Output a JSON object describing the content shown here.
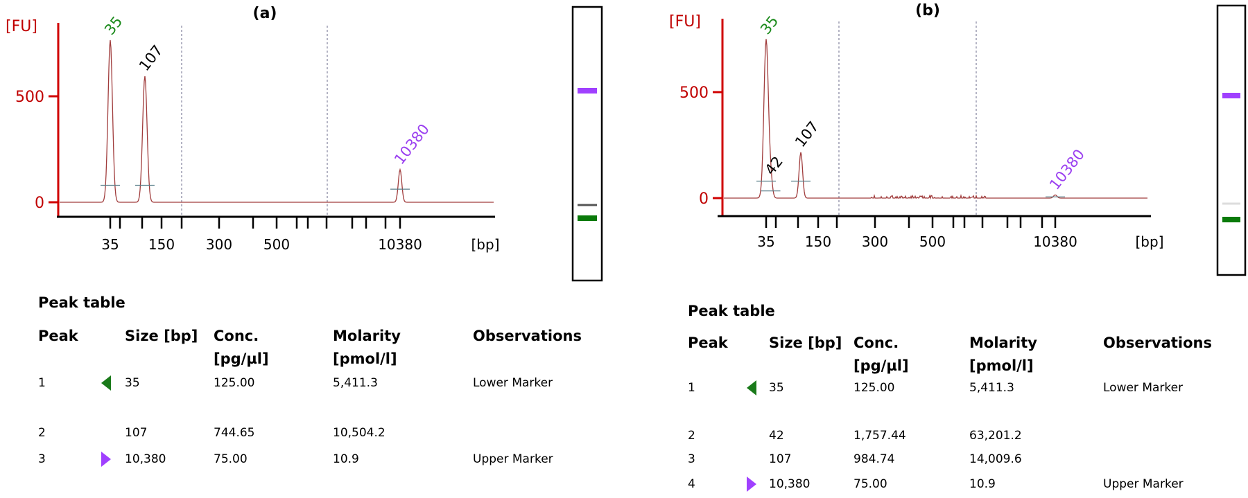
{
  "chart_data": [
    {
      "type": "line",
      "panel_label": "(a)",
      "y_label": "[FU]",
      "x_label": "[bp]",
      "y_ticks": [
        0,
        500
      ],
      "ylim": [
        0,
        900
      ],
      "x_ladder": [
        35,
        50,
        100,
        150,
        200,
        300,
        400,
        500,
        600,
        700,
        1000,
        2000,
        3000,
        7000,
        10380
      ],
      "x_tick_labels": [
        "35",
        "150",
        "300",
        "500",
        "10380"
      ],
      "x_tick_label_values": [
        35,
        150,
        300,
        500,
        10380
      ],
      "peaks": [
        {
          "size": 35,
          "fu": 765,
          "label": "35",
          "color": "#1a8a1a"
        },
        {
          "size": 107,
          "fu": 595,
          "label": "107",
          "color": "#000000"
        },
        {
          "size": 10380,
          "fu": 154,
          "label": "10380",
          "color": "#9b40f0"
        }
      ],
      "noise": false,
      "gel_bands": [
        {
          "size": 10380,
          "color": "#a040ff"
        },
        {
          "size": 107,
          "color": "#555555"
        },
        {
          "size": 35,
          "color": "#0a7a0a"
        }
      ]
    },
    {
      "type": "line",
      "panel_label": "(b)",
      "y_label": "[FU]",
      "x_label": "[bp]",
      "y_ticks": [
        0,
        500
      ],
      "ylim": [
        0,
        900
      ],
      "x_ladder": [
        35,
        50,
        100,
        150,
        200,
        300,
        400,
        500,
        600,
        700,
        1000,
        2000,
        3000,
        7000,
        10380
      ],
      "x_tick_labels": [
        "35",
        "150",
        "300",
        "500",
        "10380"
      ],
      "x_tick_label_values": [
        35,
        150,
        300,
        500,
        10380
      ],
      "peaks": [
        {
          "size": 35,
          "fu": 748,
          "label": "35",
          "color": "#1a8a1a"
        },
        {
          "size": 42,
          "fu": 85,
          "label": "42",
          "color": "#000000"
        },
        {
          "size": 107,
          "fu": 216,
          "label": "107",
          "color": "#000000"
        },
        {
          "size": 10380,
          "fu": 15,
          "label": "10380",
          "color": "#9b40f0"
        }
      ],
      "noise": true,
      "gel_bands": [
        {
          "size": 10380,
          "color": "#a040ff"
        },
        {
          "size": 107,
          "color": "#dddddd"
        },
        {
          "size": 35,
          "color": "#0a7a0a"
        }
      ]
    }
  ],
  "tables": [
    {
      "title": "Peak table",
      "headers": {
        "peak": "Peak",
        "size": "Size [bp]",
        "conc": "Conc.",
        "conc_unit": "[pg/µl]",
        "molarity": "Molarity",
        "molarity_unit": "[pmol/l]",
        "observations": "Observations"
      },
      "rows": [
        {
          "peak": "1",
          "marker": "lower",
          "size": "35",
          "conc": "125.00",
          "molarity": "5,411.3",
          "obs": "Lower Marker"
        },
        {
          "peak": "2",
          "marker": "",
          "size": "107",
          "conc": "744.65",
          "molarity": "10,504.2",
          "obs": ""
        },
        {
          "peak": "3",
          "marker": "upper",
          "size": "10,380",
          "conc": "75.00",
          "molarity": "10.9",
          "obs": "Upper Marker"
        }
      ]
    },
    {
      "title": "Peak table",
      "headers": {
        "peak": "Peak",
        "size": "Size [bp]",
        "conc": "Conc.",
        "conc_unit": "[pg/µl]",
        "molarity": "Molarity",
        "molarity_unit": "[pmol/l]",
        "observations": "Observations"
      },
      "rows": [
        {
          "peak": "1",
          "marker": "lower",
          "size": "35",
          "conc": "125.00",
          "molarity": "5,411.3",
          "obs": "Lower Marker"
        },
        {
          "peak": "2",
          "marker": "",
          "size": "42",
          "conc": "1,757.44",
          "molarity": "63,201.2",
          "obs": ""
        },
        {
          "peak": "3",
          "marker": "",
          "size": "107",
          "conc": "984.74",
          "molarity": "14,009.6",
          "obs": ""
        },
        {
          "peak": "4",
          "marker": "upper",
          "size": "10,380",
          "conc": "75.00",
          "molarity": "10.9",
          "obs": "Upper Marker"
        }
      ]
    }
  ],
  "colors": {
    "axis": "#d00000",
    "trace": "#a03c3c",
    "lower_marker": "#1a7a1a",
    "upper_marker": "#a040ff"
  }
}
